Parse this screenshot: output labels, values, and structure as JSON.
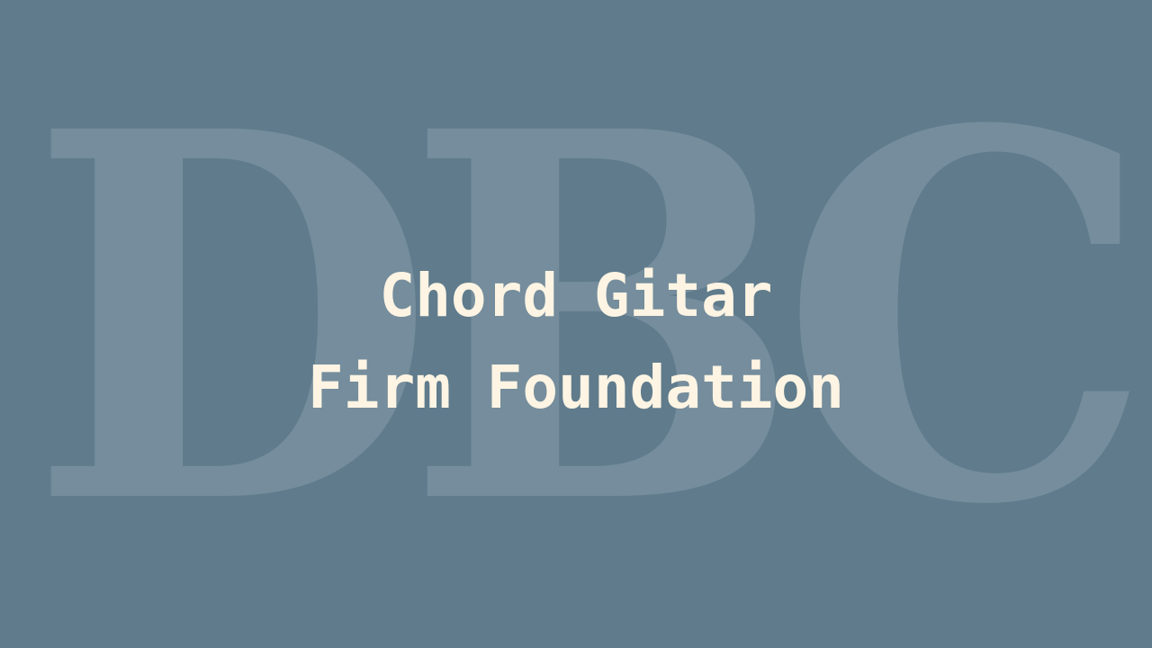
{
  "background_color": "#5f7b8c",
  "text_color": "#fdf4e3",
  "watermark": {
    "text": "DBC"
  },
  "title": {
    "line1": "Chord Gitar",
    "line2": "Firm Foundation"
  }
}
